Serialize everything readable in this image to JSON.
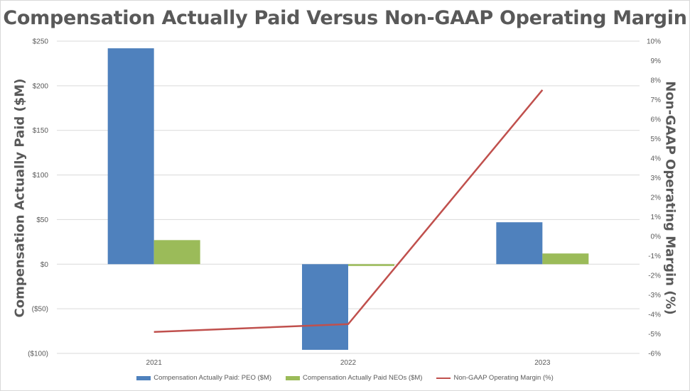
{
  "colors": {
    "peo": "#4f81bd",
    "neo": "#9bbb59",
    "margin": "#c0504d",
    "grid": "#d9d9d9",
    "text": "#595959"
  },
  "chart_data": {
    "type": "bar",
    "title": "Compensation Actually Paid Versus Non-GAAP Operating Margin",
    "ylabel": "Compensation Actually Paid ($M)",
    "y2label": "Non-GAAP Operating Margin (%)",
    "categories": [
      "2021",
      "2022",
      "2023"
    ],
    "ylim": [
      -100,
      250
    ],
    "y2lim": [
      -6,
      10
    ],
    "yticks": [
      {
        "value": 250,
        "label": "$250"
      },
      {
        "value": 200,
        "label": "$200"
      },
      {
        "value": 150,
        "label": "$150"
      },
      {
        "value": 100,
        "label": "$100"
      },
      {
        "value": 50,
        "label": "$50"
      },
      {
        "value": 0,
        "label": "$0"
      },
      {
        "value": -50,
        "label": "($50)"
      },
      {
        "value": -100,
        "label": "($100)"
      }
    ],
    "y2ticks": [
      {
        "value": 10,
        "label": "10%"
      },
      {
        "value": 9,
        "label": "9%"
      },
      {
        "value": 8,
        "label": "8%"
      },
      {
        "value": 7,
        "label": "7%"
      },
      {
        "value": 6,
        "label": "6%"
      },
      {
        "value": 5,
        "label": "5%"
      },
      {
        "value": 4,
        "label": "4%"
      },
      {
        "value": 3,
        "label": "3%"
      },
      {
        "value": 2,
        "label": "2%"
      },
      {
        "value": 1,
        "label": "1%"
      },
      {
        "value": 0,
        "label": "0%"
      },
      {
        "value": -1,
        "label": "-1%"
      },
      {
        "value": -2,
        "label": "-2%"
      },
      {
        "value": -3,
        "label": "-3%"
      },
      {
        "value": -4,
        "label": "-4%"
      },
      {
        "value": -5,
        "label": "-5%"
      },
      {
        "value": -6,
        "label": "-6%"
      }
    ],
    "series": [
      {
        "name": "Compensation Actually Paid: PEO ($M)",
        "type": "bar",
        "axis": "left",
        "values": [
          242,
          -96,
          47
        ]
      },
      {
        "name": "Compensation Actually Paid NEOs ($M)",
        "type": "bar",
        "axis": "left",
        "values": [
          27,
          -2,
          12
        ]
      },
      {
        "name": "Non-GAAP Operating Margin (%)",
        "type": "line",
        "axis": "right",
        "values": [
          -4.9,
          -4.5,
          7.5
        ]
      }
    ],
    "grid": true,
    "legend": "bottom"
  }
}
